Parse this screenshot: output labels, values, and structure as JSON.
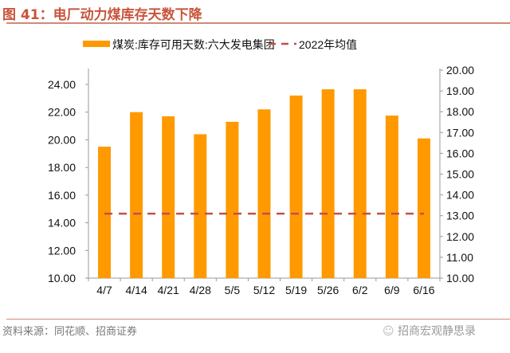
{
  "title": "图 41：电厂动力煤库存天数下降",
  "source": "资料来源：同花顺、招商证券",
  "watermark": "招商宏观静思录",
  "chart_data": {
    "type": "bar",
    "categories": [
      "4/7",
      "4/14",
      "4/21",
      "4/28",
      "5/5",
      "5/12",
      "5/19",
      "5/26",
      "6/2",
      "6/9",
      "6/16"
    ],
    "series": [
      {
        "name": "煤炭:库存可用天数:六大发电集团",
        "type": "bar",
        "axis": "left",
        "color": "#ff9900",
        "values": [
          19.5,
          22.0,
          21.7,
          20.4,
          21.3,
          22.2,
          23.2,
          23.65,
          23.65,
          21.75,
          20.1
        ]
      },
      {
        "name": "2022年均值",
        "type": "line",
        "style": "dashed",
        "axis": "right",
        "color": "#c0504d",
        "values": [
          13.1,
          13.1,
          13.1,
          13.1,
          13.1,
          13.1,
          13.1,
          13.1,
          13.1,
          13.1,
          13.1
        ]
      }
    ],
    "ylim_left": [
      10,
      24
    ],
    "yticks_left": [
      "10.00",
      "12.00",
      "14.00",
      "16.00",
      "18.00",
      "20.00",
      "22.00",
      "24.00"
    ],
    "ylim_right": [
      10,
      20
    ],
    "yticks_right": [
      "10.00",
      "11.00",
      "12.00",
      "13.00",
      "14.00",
      "15.00",
      "16.00",
      "17.00",
      "18.00",
      "19.00",
      "20.00"
    ],
    "legend": "top",
    "grid": false
  }
}
